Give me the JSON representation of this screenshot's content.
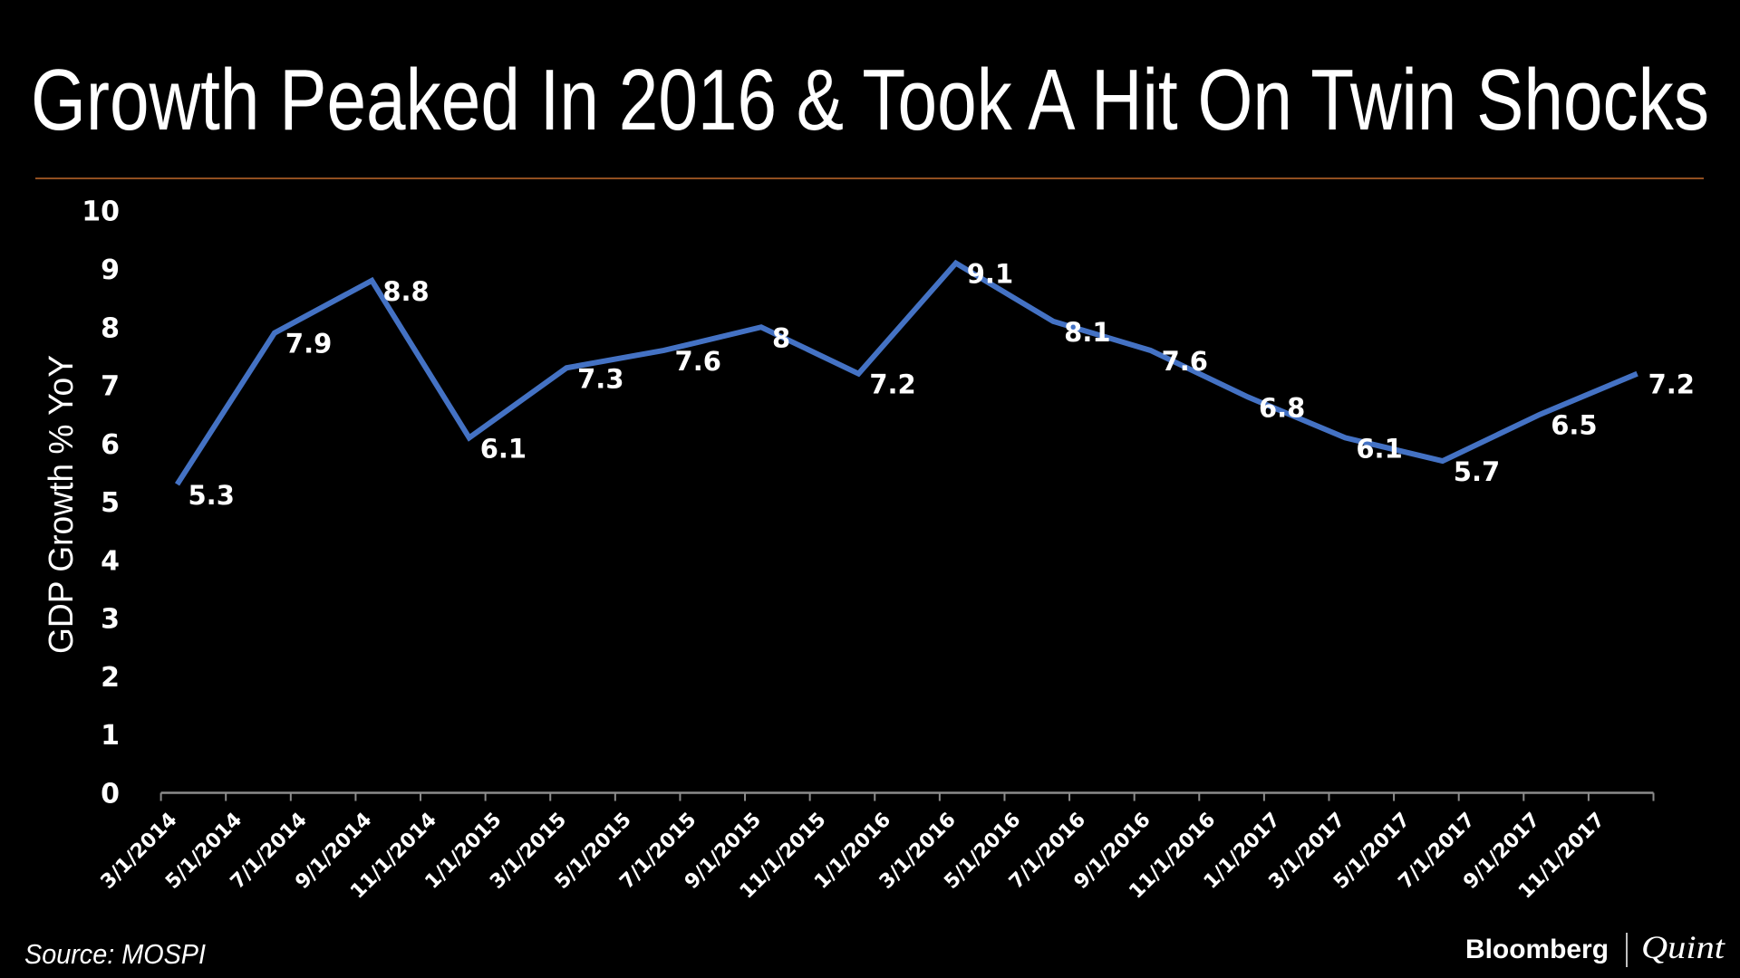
{
  "chart_data": {
    "type": "line",
    "title": "Growth Peaked In 2016 & Took A Hit On Twin Shocks",
    "ylabel": "GDP Growth % YoY",
    "xlabel": "",
    "ylim": [
      0,
      10
    ],
    "yticks": [
      "0",
      "1",
      "2",
      "3",
      "4",
      "5",
      "6",
      "7",
      "8",
      "9",
      "10"
    ],
    "xlim": [
      "3/1/2014",
      "1/1/2018"
    ],
    "xticks": [
      "3/1/2014",
      "5/1/2014",
      "7/1/2014",
      "9/1/2014",
      "11/1/2014",
      "1/1/2015",
      "3/1/2015",
      "5/1/2015",
      "7/1/2015",
      "9/1/2015",
      "11/1/2015",
      "1/1/2016",
      "3/1/2016",
      "5/1/2016",
      "7/1/2016",
      "9/1/2016",
      "11/1/2016",
      "1/1/2017",
      "3/1/2017",
      "5/1/2017",
      "7/1/2017",
      "9/1/2017",
      "11/1/2017"
    ],
    "grid": false,
    "series": [
      {
        "color": "#4472C4",
        "x": [
          "3/2014",
          "6/2014",
          "9/2014",
          "12/2014",
          "3/2015",
          "6/2015",
          "9/2015",
          "12/2015",
          "3/2016",
          "6/2016",
          "9/2016",
          "12/2016",
          "3/2017",
          "6/2017",
          "9/2017",
          "12/2017"
        ],
        "values": [
          5.3,
          7.9,
          8.8,
          6.1,
          7.3,
          7.6,
          8,
          7.2,
          9.1,
          8.1,
          7.6,
          6.8,
          6.1,
          5.7,
          6.5,
          7.2
        ],
        "labels": [
          "5.3",
          "7.9",
          "8.8",
          "6.1",
          "7.3",
          "7.6",
          "8",
          "7.2",
          "9.1",
          "8.1",
          "7.6",
          "6.8",
          "6.1",
          "5.7",
          "6.5",
          "7.2"
        ]
      }
    ]
  },
  "footer": {
    "source": "Source: MOSPI",
    "logo_left": "Bloomberg",
    "logo_right": "Quint"
  },
  "colors": {
    "background": "#000000",
    "divider": "#C0692A",
    "line": "#4472C4",
    "axis": "#8C8C8C"
  }
}
